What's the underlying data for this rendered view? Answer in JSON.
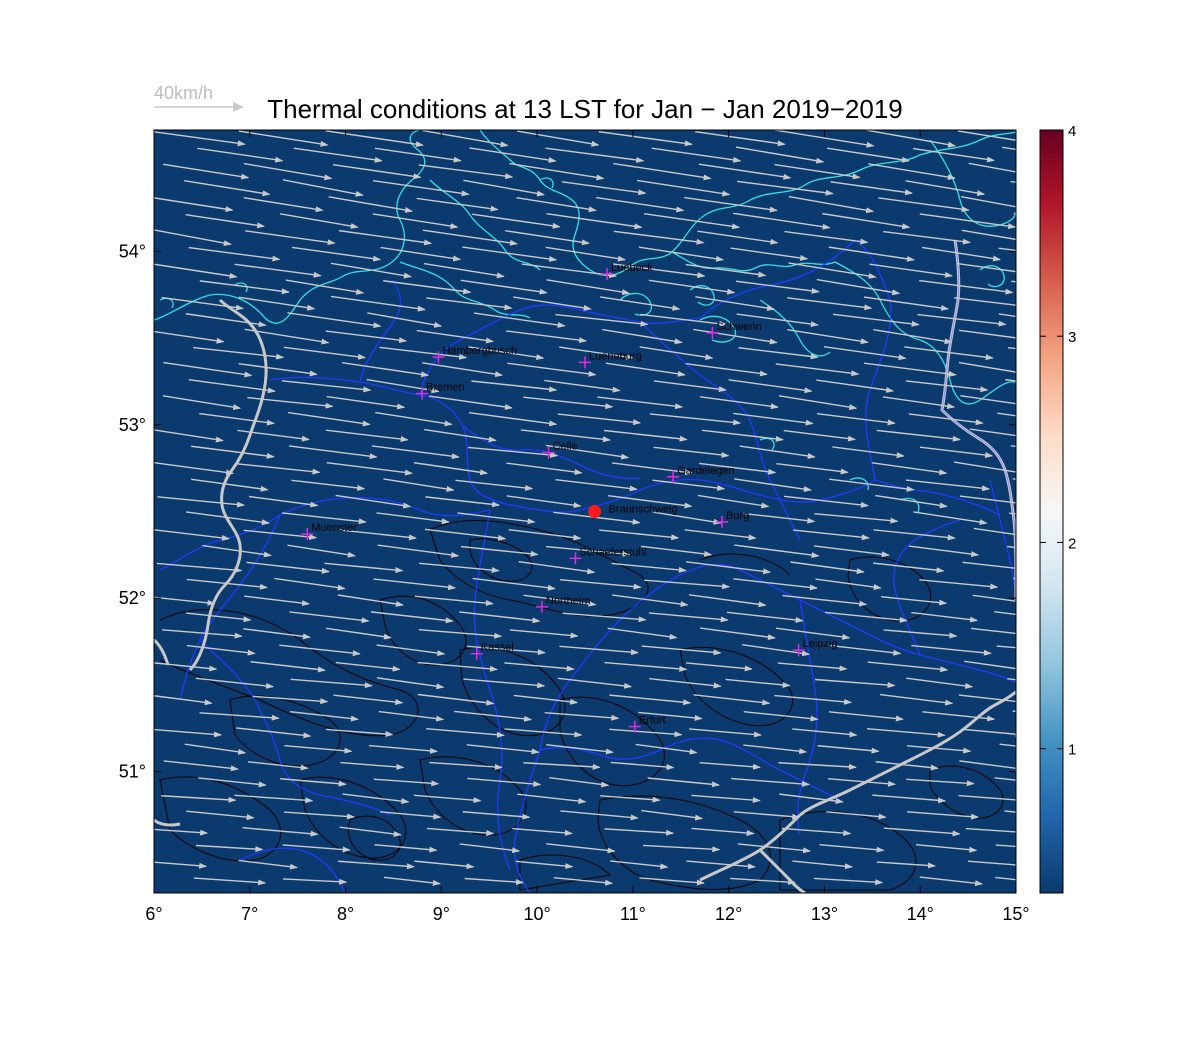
{
  "title": "Thermal conditions at 13 LST for Jan − Jan  2019−2019",
  "reference_vector": {
    "label": "40km/h",
    "speed_kmh": 40
  },
  "map": {
    "lon_range": [
      6,
      15
    ],
    "lat_range": [
      50.3,
      54.7
    ],
    "background_color": "#0b3a6e",
    "x_ticks": [
      "6°",
      "7°",
      "8°",
      "9°",
      "10°",
      "11°",
      "12°",
      "13°",
      "14°",
      "15°"
    ],
    "y_ticks": [
      "51°",
      "52°",
      "53°",
      "54°"
    ],
    "wind_direction": "west to east",
    "vector_color": "#c9c9c9",
    "coastline_color": "#35e0e0",
    "state_border_color": "#1f3bff",
    "national_border_color": "#c8c8c8",
    "contour_color": "#000000"
  },
  "cities": [
    {
      "name": "Luebeck",
      "lon": 10.73,
      "lat": 53.87
    },
    {
      "name": "Schwerin",
      "lon": 11.83,
      "lat": 53.53
    },
    {
      "name": "Hambergbusch",
      "lon": 8.97,
      "lat": 53.39
    },
    {
      "name": "Lueneburg",
      "lon": 10.5,
      "lat": 53.36
    },
    {
      "name": "Bremen",
      "lon": 8.8,
      "lat": 53.18
    },
    {
      "name": "Celle",
      "lon": 10.12,
      "lat": 52.84
    },
    {
      "name": "Gardelegen",
      "lon": 11.42,
      "lat": 52.7
    },
    {
      "name": "Burg",
      "lon": 11.93,
      "lat": 52.44
    },
    {
      "name": "Muenster",
      "lon": 7.6,
      "lat": 52.37
    },
    {
      "name": "Schaeferstuhl",
      "lon": 10.4,
      "lat": 52.23
    },
    {
      "name": "Northeim",
      "lon": 10.05,
      "lat": 51.95
    },
    {
      "name": "Kassel",
      "lon": 9.37,
      "lat": 51.68
    },
    {
      "name": "Leipzig",
      "lon": 12.73,
      "lat": 51.7
    },
    {
      "name": "Erfurt",
      "lon": 11.02,
      "lat": 51.26
    }
  ],
  "station": {
    "name": "Braunschweig",
    "lon": 10.6,
    "lat": 52.5,
    "color": "#ff1a1a"
  },
  "colorbar": {
    "min": 0.3,
    "max": 4,
    "ticks": [
      "1",
      "2",
      "3",
      "4"
    ],
    "colors": [
      "#0b3a6e",
      "#2166ac",
      "#4393c3",
      "#92c5de",
      "#d1e5f0",
      "#f7f7f7",
      "#fddbc7",
      "#f4a582",
      "#d6604d",
      "#b2182b",
      "#67001f"
    ]
  },
  "chart_data": {
    "type": "heatmap",
    "title": "Thermal conditions at 13 LST for Jan − Jan  2019−2019",
    "xlabel": "",
    "ylabel": "",
    "xlim": [
      6,
      15
    ],
    "ylim": [
      50.3,
      54.7
    ],
    "x_ticks": [
      6,
      7,
      8,
      9,
      10,
      11,
      12,
      13,
      14,
      15
    ],
    "y_ticks": [
      51,
      52,
      53,
      54
    ],
    "field_value": 0.3,
    "colorbar_range": [
      0.3,
      4
    ],
    "vector_reference_kmh": 40
  }
}
